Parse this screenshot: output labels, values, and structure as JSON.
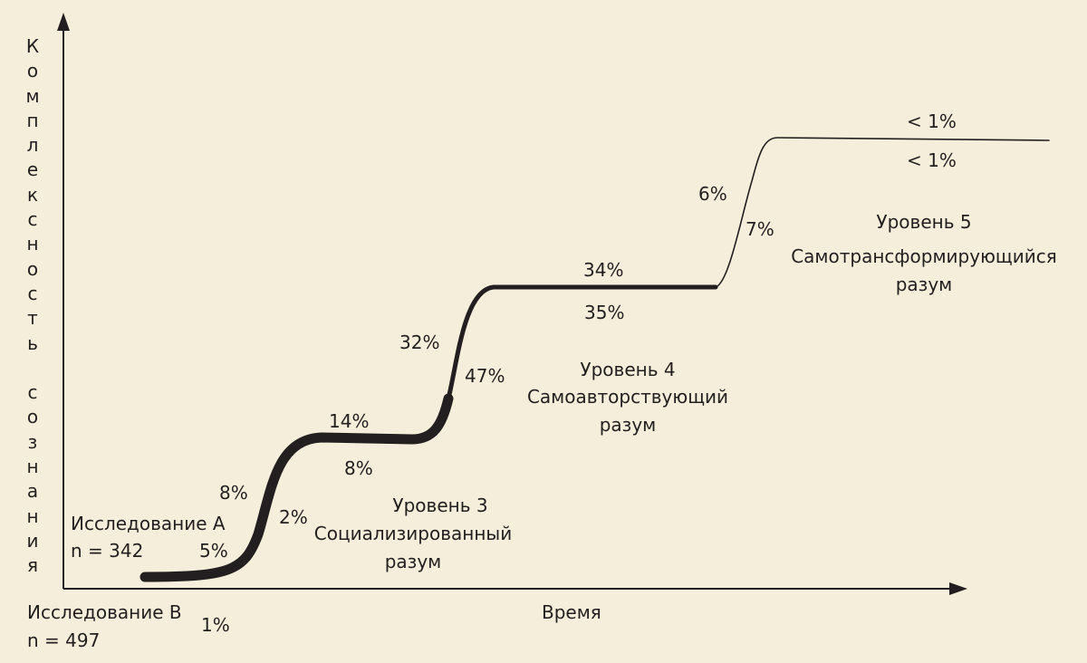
{
  "axes": {
    "y_label": "Комплексность сознания",
    "x_label": "Время"
  },
  "studies": {
    "a_name": "Исследование А",
    "a_n": "n = 342",
    "b_name": "Исследование В",
    "b_n": "n = 497"
  },
  "levels": [
    {
      "title": "Уровень 3",
      "line1": "Социализированный",
      "line2": "разум"
    },
    {
      "title": "Уровень 4",
      "line1": "Самоавторствующий",
      "line2": "разум"
    },
    {
      "title": "Уровень 5",
      "line1": "Самотрансформирующийся",
      "line2": "разум"
    }
  ],
  "percentages": {
    "transition_2_3_upper": "8%",
    "transition_2_3_lower": "2%",
    "level_2_study_a": "5%",
    "level_2_study_b": "1%",
    "level_3_upper": "14%",
    "level_3_lower": "8%",
    "transition_3_4_upper": "32%",
    "transition_3_4_lower": "47%",
    "level_4_upper": "34%",
    "level_4_lower": "35%",
    "transition_4_5_upper": "6%",
    "transition_4_5_lower": "7%",
    "level_5_upper": "< 1%",
    "level_5_lower": "< 1%"
  }
}
